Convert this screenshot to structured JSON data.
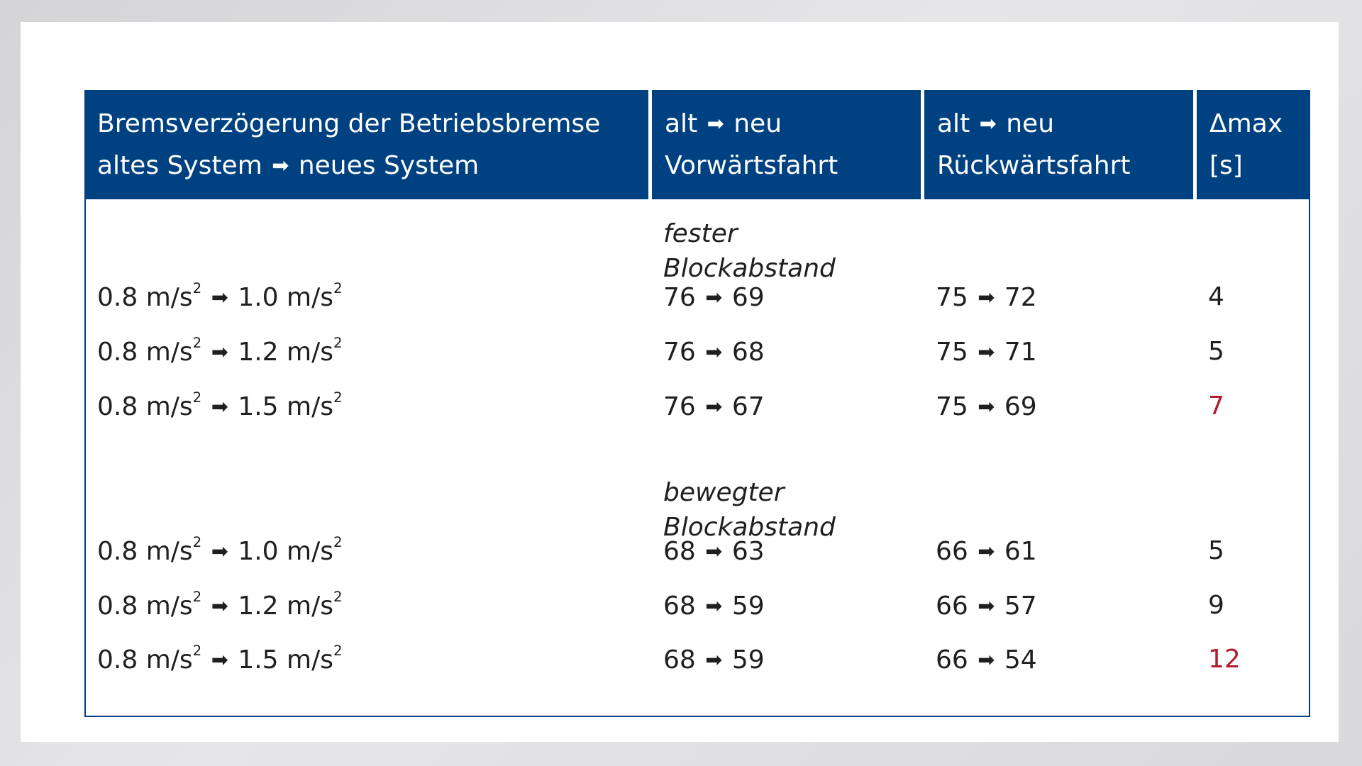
{
  "header": {
    "col1_line1": "Bremsverzögerung der Betriebsbremse",
    "col1_line2_a": "altes System",
    "col1_line2_b": "neues System",
    "col2_line1_a": "alt",
    "col2_line1_b": "neu",
    "col2_line2": "Vorwärtsfahrt",
    "col3_line1_a": "alt",
    "col3_line1_b": "neu",
    "col3_line2": "Rückwärtsfahrt",
    "col4_line1": "Δmax",
    "col4_line2": "[s]"
  },
  "arrow_glyph": "➡",
  "unit": "m/s",
  "unit_exp": "2",
  "groups": [
    {
      "label_line1": "fester",
      "label_line2": "Blockabstand",
      "rows": [
        {
          "from": "0.8",
          "to": "1.0",
          "fwd_from": "76",
          "fwd_to": "69",
          "rev_from": "75",
          "rev_to": "72",
          "dmax": "4",
          "highlight": false
        },
        {
          "from": "0.8",
          "to": "1.2",
          "fwd_from": "76",
          "fwd_to": "68",
          "rev_from": "75",
          "rev_to": "71",
          "dmax": "5",
          "highlight": false
        },
        {
          "from": "0.8",
          "to": "1.5",
          "fwd_from": "76",
          "fwd_to": "67",
          "rev_from": "75",
          "rev_to": "69",
          "dmax": "7",
          "highlight": true
        }
      ]
    },
    {
      "label_line1": "bewegter",
      "label_line2": "Blockabstand",
      "rows": [
        {
          "from": "0.8",
          "to": "1.0",
          "fwd_from": "68",
          "fwd_to": "63",
          "rev_from": "66",
          "rev_to": "61",
          "dmax": "5",
          "highlight": false
        },
        {
          "from": "0.8",
          "to": "1.2",
          "fwd_from": "68",
          "fwd_to": "59",
          "rev_from": "66",
          "rev_to": "57",
          "dmax": "9",
          "highlight": false
        },
        {
          "from": "0.8",
          "to": "1.5",
          "fwd_from": "68",
          "fwd_to": "59",
          "rev_from": "66",
          "rev_to": "54",
          "dmax": "12",
          "highlight": true
        }
      ]
    }
  ],
  "colors": {
    "header_bg": "#004181",
    "header_text": "#ffffff",
    "highlight": "#b01e2f",
    "body_text": "#1f1f1f"
  }
}
